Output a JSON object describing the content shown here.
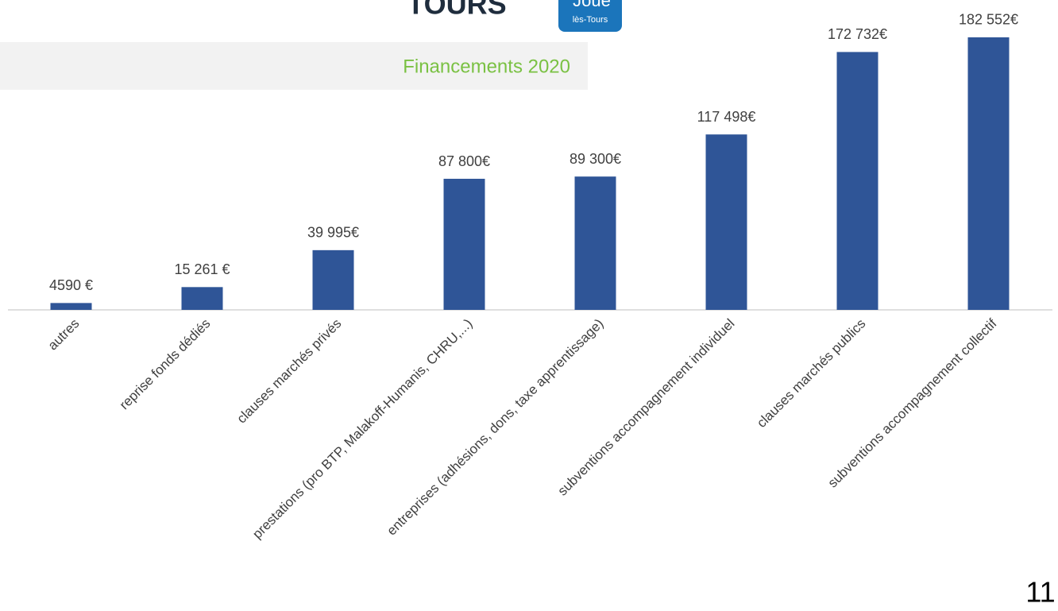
{
  "header": {
    "title": "TOURS",
    "logo_top": "Joué",
    "logo_bottom": "lès-Tours"
  },
  "page_number": "11",
  "chart_data": {
    "type": "bar",
    "title": "Financements 2020",
    "categories": [
      "autres",
      "reprise fonds dédiés",
      "clauses marchés privés",
      "prestations (pro BTP, Malakoff-Humanis, CHRU,...)",
      "entreprises (adhésions, dons, taxe apprentissage)",
      "subventions accompagnement individuel",
      "clauses marchés publics",
      "subventions accompagnement collectif"
    ],
    "values": [
      4590,
      15261,
      39995,
      87800,
      89300,
      117498,
      172732,
      182552
    ],
    "value_labels": [
      "4590 €",
      "15 261 €",
      "39 995€",
      "87 800€",
      "89 300€",
      "117 498€",
      "172 732€",
      "182 552€"
    ],
    "color": "#2f5597",
    "ylim": [
      0,
      200000
    ]
  }
}
